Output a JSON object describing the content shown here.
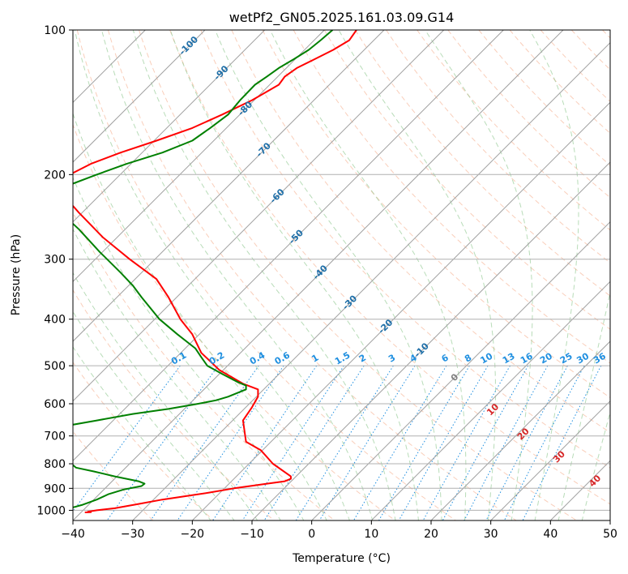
{
  "chart_data": {
    "type": "line",
    "subtype": "skew-t log-p diagram",
    "title": "wetPf2_GN05.2025.161.03.09.G14",
    "xlabel": "Temperature (°C)",
    "ylabel": "Pressure (hPa)",
    "xlim": [
      -40,
      50
    ],
    "ylim": [
      1050,
      100
    ],
    "y_scale": "log",
    "grid": true,
    "x_ticks": [
      "−40",
      "−30",
      "−20",
      "−10",
      "0",
      "10",
      "20",
      "30",
      "40",
      "50"
    ],
    "y_ticks": [
      "100",
      "200",
      "300",
      "400",
      "500",
      "600",
      "700",
      "800",
      "900",
      "1000"
    ],
    "colors": {
      "temperature": "#ff0000",
      "dewpoint": "#008000",
      "isotherm": "#a0a0a0",
      "dry_adiabat": "#f4a582",
      "moist_adiabat": "#88c488",
      "mixing_ratio": "#1f8fe0",
      "isotherm_label": "#1f6fa8",
      "moist_label": "#d62728"
    },
    "series": [
      {
        "points": [
          [
            7.5,
            100
          ],
          [
            6.3,
            105
          ],
          [
            3.6,
            110
          ],
          [
            0.5,
            115
          ],
          [
            -2.5,
            120
          ],
          [
            -4.5,
            125
          ],
          [
            -5.5,
            130
          ],
          [
            -10,
            140
          ],
          [
            -15,
            150
          ],
          [
            -20,
            160
          ],
          [
            -26,
            170
          ],
          [
            -32,
            180
          ],
          [
            -37,
            190
          ],
          [
            -40.5,
            200
          ],
          [
            -42,
            210
          ],
          [
            -41,
            225
          ],
          [
            -39,
            240
          ],
          [
            -35,
            270
          ],
          [
            -30.5,
            300
          ],
          [
            -26,
            330
          ],
          [
            -24,
            360
          ],
          [
            -22,
            400
          ],
          [
            -20,
            430
          ],
          [
            -18.5,
            470
          ],
          [
            -15.5,
            510
          ],
          [
            -11.5,
            545
          ],
          [
            -9,
            560
          ],
          [
            -9,
            580
          ],
          [
            -10,
            610
          ],
          [
            -11.5,
            650
          ],
          [
            -11,
            720
          ],
          [
            -8.5,
            750
          ],
          [
            -6.5,
            800
          ],
          [
            -3.5,
            850
          ],
          [
            -3.5,
            860
          ],
          [
            -4.5,
            870
          ],
          [
            -7.5,
            880
          ],
          [
            -13,
            900
          ],
          [
            -17,
            918
          ],
          [
            -20,
            930
          ],
          [
            -25,
            950
          ],
          [
            -29,
            970
          ],
          [
            -33,
            990
          ],
          [
            -36,
            1000
          ],
          [
            -37.5,
            1007
          ],
          [
            -37,
            1009
          ],
          [
            -38,
            1010
          ]
        ]
      },
      {
        "points": [
          [
            3.5,
            100
          ],
          [
            1.5,
            105
          ],
          [
            -0.5,
            110
          ],
          [
            -3,
            115
          ],
          [
            -5.5,
            120
          ],
          [
            -7.5,
            125
          ],
          [
            -9.5,
            130
          ],
          [
            -12,
            140
          ],
          [
            -14,
            150
          ],
          [
            -17,
            160
          ],
          [
            -20,
            170
          ],
          [
            -25,
            180
          ],
          [
            -31,
            190
          ],
          [
            -36,
            200
          ],
          [
            -40.5,
            210
          ],
          [
            -43,
            220
          ],
          [
            -43.5,
            230
          ],
          [
            -42,
            240
          ],
          [
            -39,
            260
          ],
          [
            -35.5,
            290
          ],
          [
            -32,
            320
          ],
          [
            -30,
            340
          ],
          [
            -28.5,
            360
          ],
          [
            -25.5,
            400
          ],
          [
            -22.5,
            430
          ],
          [
            -19.5,
            460
          ],
          [
            -18.5,
            480
          ],
          [
            -17.5,
            500
          ],
          [
            -15,
            520
          ],
          [
            -12.5,
            540
          ],
          [
            -11,
            550
          ],
          [
            -11,
            560
          ],
          [
            -12.5,
            570
          ],
          [
            -14,
            580
          ],
          [
            -16,
            590
          ],
          [
            -19,
            600
          ],
          [
            -24,
            615
          ],
          [
            -30,
            630
          ],
          [
            -36,
            650
          ],
          [
            -42,
            670
          ],
          [
            -47,
            690
          ],
          [
            -50,
            710
          ],
          [
            -49.5,
            725
          ],
          [
            -47,
            745
          ],
          [
            -44,
            770
          ],
          [
            -41,
            790
          ],
          [
            -40,
            805
          ],
          [
            -39.5,
            815
          ],
          [
            -36.5,
            830
          ],
          [
            -33,
            850
          ],
          [
            -31,
            860
          ],
          [
            -29,
            870
          ],
          [
            -28,
            880
          ],
          [
            -28.5,
            890
          ],
          [
            -31.5,
            905
          ],
          [
            -34,
            925
          ],
          [
            -36,
            950
          ],
          [
            -38.5,
            975
          ],
          [
            -40.5,
            990
          ],
          [
            -41.5,
            998
          ],
          [
            -41,
            1000
          ],
          [
            -40.5,
            1003
          ],
          [
            -40,
            1005
          ]
        ]
      }
    ],
    "isotherm_labels": [
      {
        "text": "-100",
        "t": -100,
        "p": 108
      },
      {
        "text": "-90",
        "t": -90,
        "p": 123
      },
      {
        "text": "-80",
        "t": -80,
        "p": 146
      },
      {
        "text": "-70",
        "t": -70,
        "p": 178
      },
      {
        "text": "-60",
        "t": -60,
        "p": 222
      },
      {
        "text": "-50",
        "t": -50,
        "p": 270
      },
      {
        "text": "-40",
        "t": -40,
        "p": 320
      },
      {
        "text": "-30",
        "t": -30,
        "p": 370
      },
      {
        "text": "-20",
        "t": -20,
        "p": 415
      },
      {
        "text": "-10",
        "t": -10,
        "p": 465
      }
    ],
    "mixing_ratio_labels": [
      "0.1",
      "0.2",
      "0.4",
      "0.6",
      "1",
      "1.5",
      "2",
      "3",
      "4",
      "6",
      "8",
      "10",
      "13",
      "16",
      "20",
      "25",
      "30",
      "36"
    ],
    "moist_adiabat_labels": [
      {
        "text": "0",
        "x": 24,
        "p": 530
      },
      {
        "text": "10",
        "x": 30.4,
        "p": 618
      },
      {
        "text": "20",
        "x": 35.5,
        "p": 695
      },
      {
        "text": "30",
        "x": 41.5,
        "p": 775
      },
      {
        "text": "40",
        "x": 47.5,
        "p": 870
      }
    ]
  }
}
